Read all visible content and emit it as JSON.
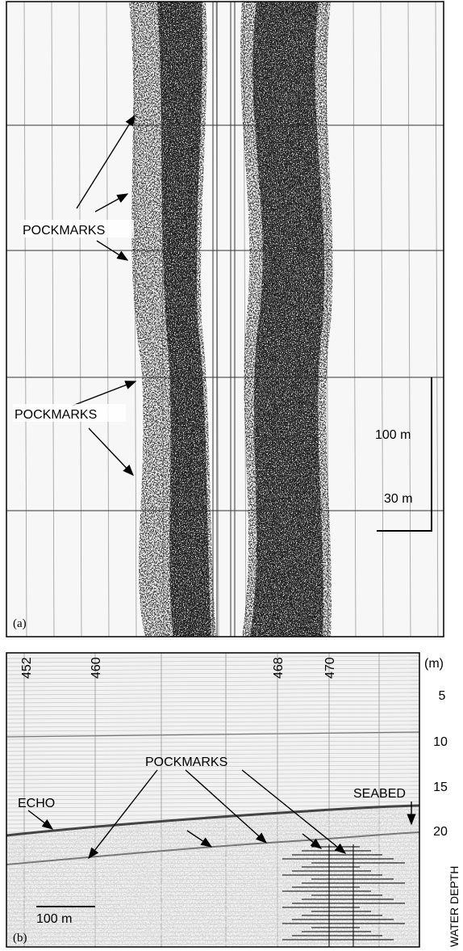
{
  "panel_a": {
    "label": "(a)",
    "annotations": [
      "POCKMARKS",
      "POCKMARKS"
    ],
    "scale": {
      "vertical": "100 m",
      "horizontal": "30 m"
    }
  },
  "panel_b": {
    "label": "(b)",
    "top_labels": [
      "452",
      "460",
      "468",
      "470"
    ],
    "depth_unit": "(m)",
    "depth_ticks": [
      "5",
      "10",
      "15",
      "20"
    ],
    "axis_title": "WATER DEPTH",
    "annotations": {
      "pockmarks": "POCKMARKS",
      "seabed": "SEABED",
      "echo": "ECHO"
    },
    "scale": "100 m"
  }
}
